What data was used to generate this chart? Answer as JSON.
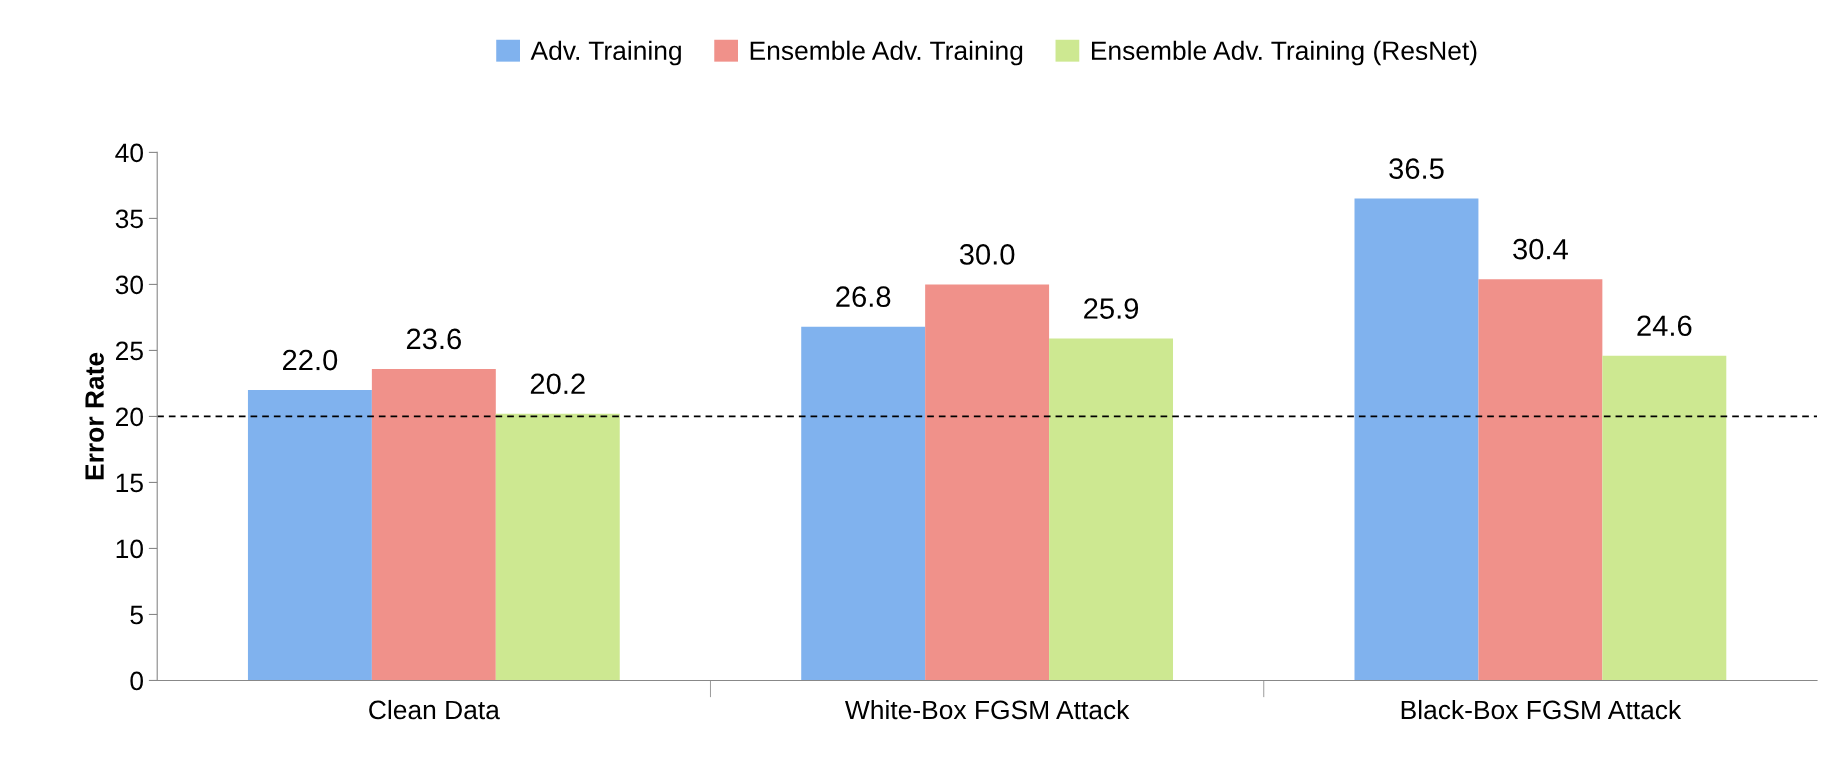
{
  "chart_data": {
    "type": "bar",
    "ylabel": "Error Rate",
    "categories": [
      "Clean Data",
      "White-Box FGSM Attack",
      "Black-Box FGSM Attack"
    ],
    "series": [
      {
        "name": "Adv. Training",
        "color": "#80b2ee",
        "values": [
          22.0,
          26.8,
          36.5
        ],
        "value_labels": [
          "22.0",
          "26.8",
          "36.5"
        ]
      },
      {
        "name": "Ensemble Adv. Training",
        "color": "#f0918a",
        "values": [
          23.6,
          30.0,
          30.4
        ],
        "value_labels": [
          "23.6",
          "30.0",
          "30.4"
        ]
      },
      {
        "name": "Ensemble Adv. Training (ResNet)",
        "color": "#cde891",
        "values": [
          20.2,
          25.9,
          24.6
        ],
        "value_labels": [
          "20.2",
          "25.9",
          "24.6"
        ]
      }
    ],
    "ylim": [
      0,
      40
    ],
    "yticks": [
      0,
      5,
      10,
      15,
      20,
      25,
      30,
      35,
      40
    ],
    "ref_lines": [
      {
        "axis": "y",
        "value": 20,
        "label": null,
        "color": "#000000",
        "line_style": "dashed"
      }
    ],
    "grid": false,
    "legend": "top"
  }
}
